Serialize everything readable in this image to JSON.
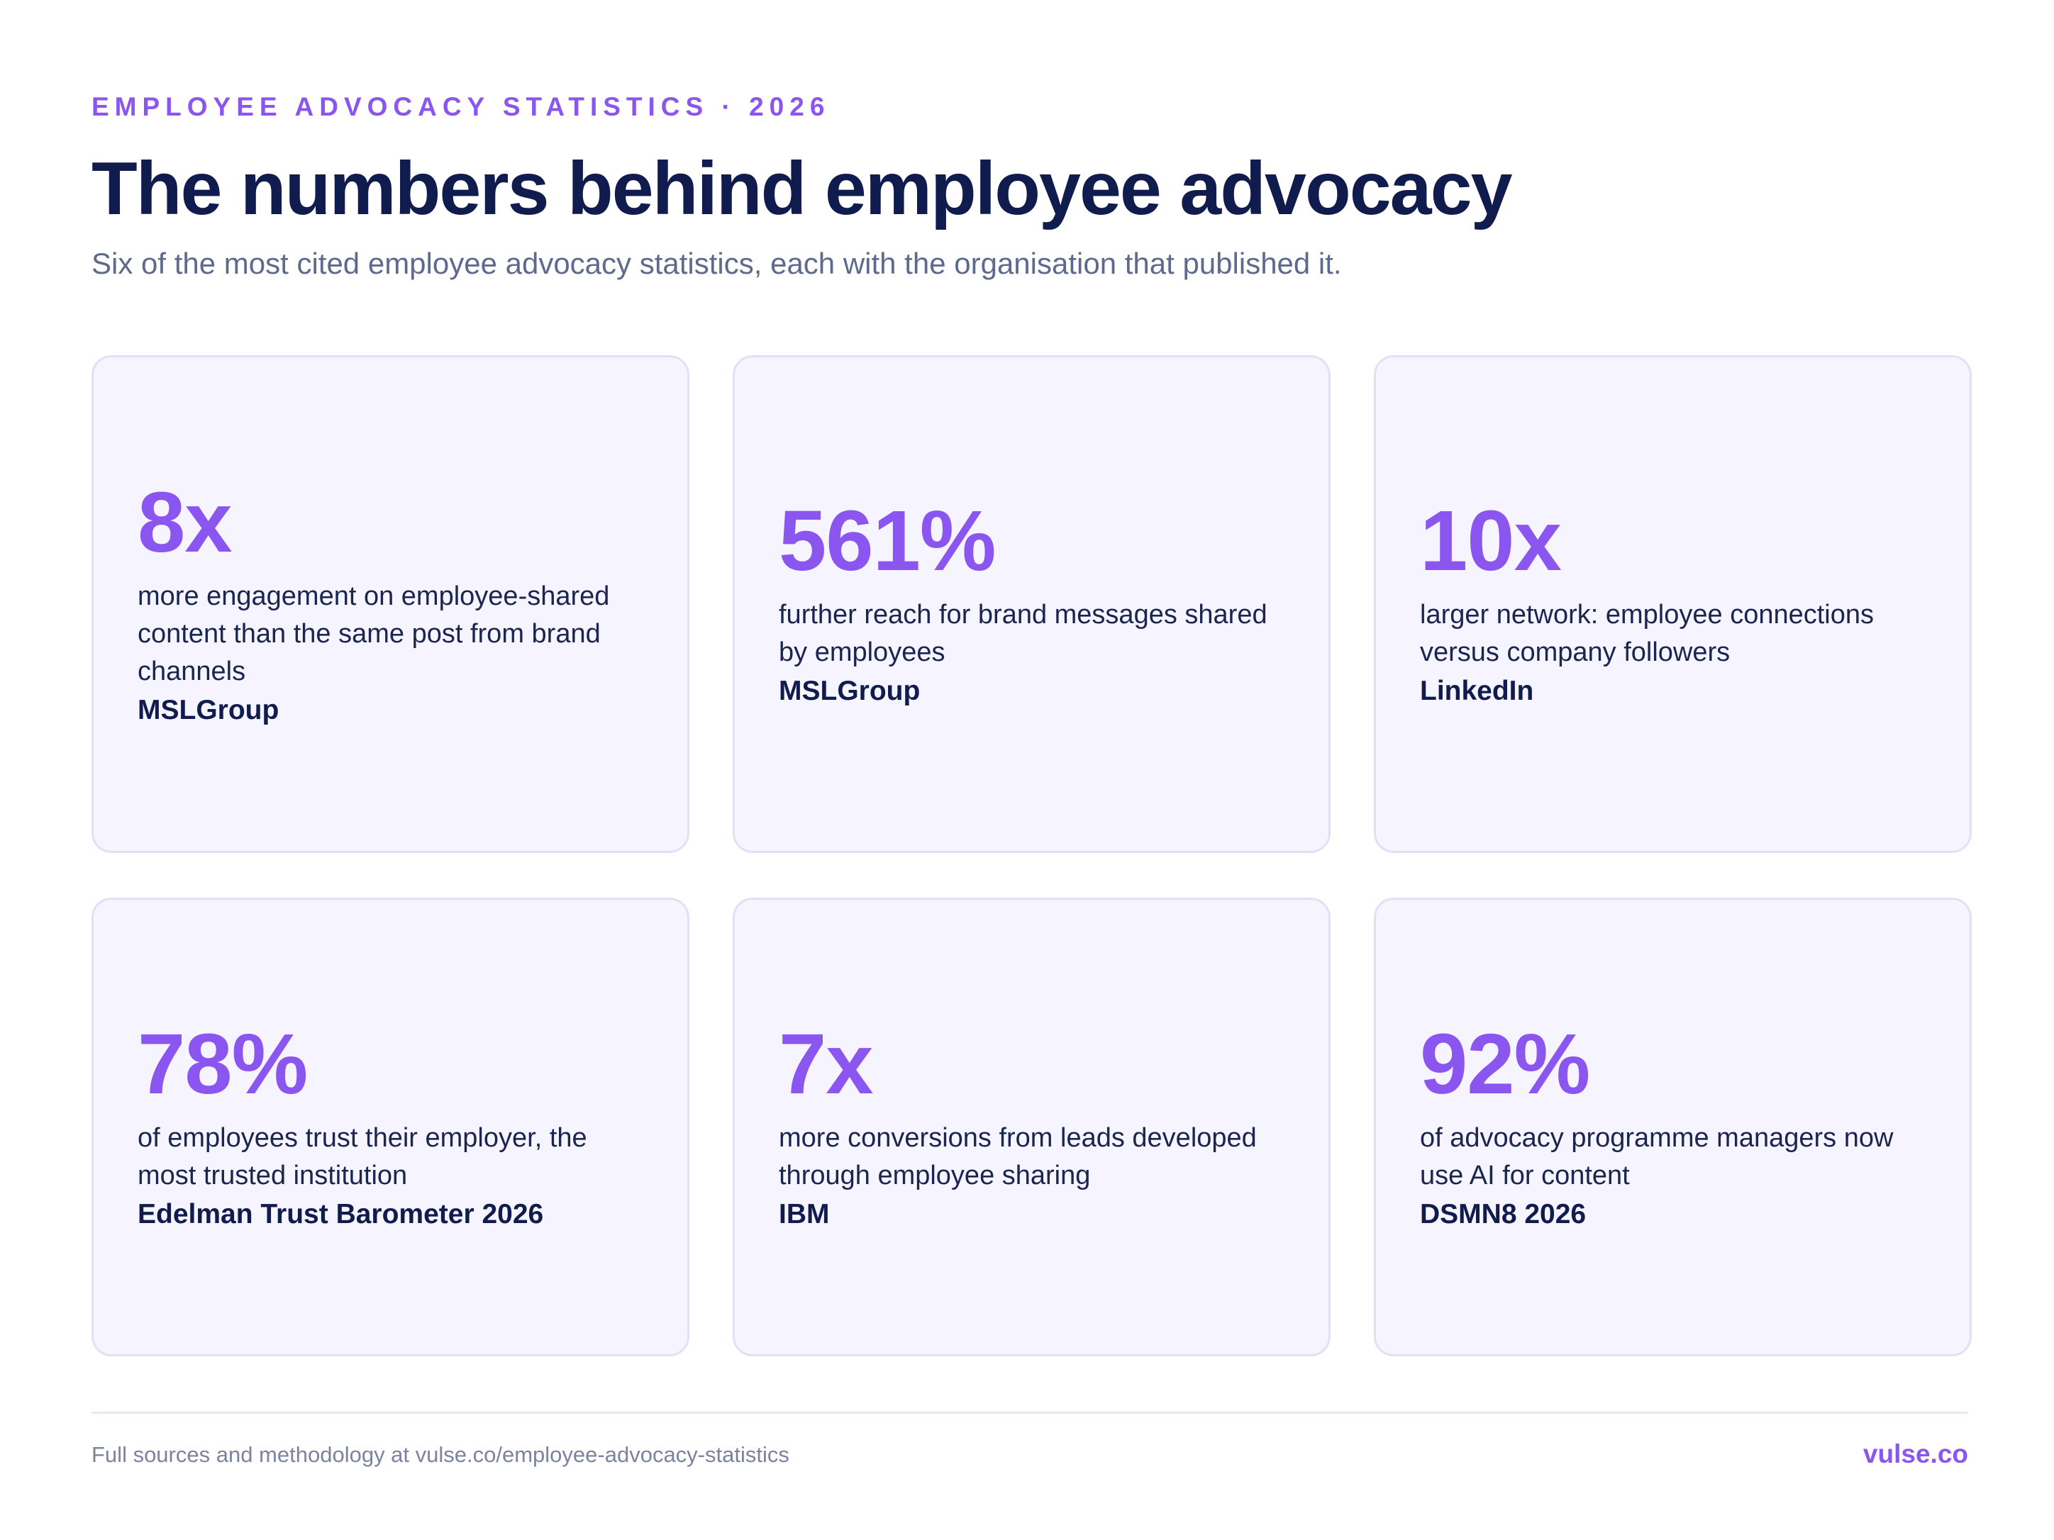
{
  "header": {
    "eyebrow": "EMPLOYEE ADVOCACY STATISTICS · 2026",
    "title": "The numbers behind employee advocacy",
    "subtitle": "Six of the most cited employee advocacy statistics, each with the organisation that published it."
  },
  "stats": [
    {
      "value": "8x",
      "description": "more engagement on employee-shared content than the same post from brand channels",
      "source": "MSLGroup"
    },
    {
      "value": "561%",
      "description": "further reach for brand messages shared by employees",
      "source": "MSLGroup"
    },
    {
      "value": "10x",
      "description": "larger network: employee connections versus company followers",
      "source": "LinkedIn"
    },
    {
      "value": "78%",
      "description": "of employees trust their employer, the most trusted institution",
      "source": "Edelman Trust Barometer 2026"
    },
    {
      "value": "7x",
      "description": "more conversions from leads developed through employee sharing",
      "source": "IBM"
    },
    {
      "value": "92%",
      "description": "of advocacy programme managers now use AI for content",
      "source": "DSMN8 2026"
    }
  ],
  "footer": {
    "sources_note": "Full sources and methodology at vulse.co/employee-advocacy-statistics",
    "brand": "vulse.co"
  },
  "colors": {
    "accent": "#8b55f0",
    "heading": "#0f1c4d",
    "card_background": "#f6f4fe",
    "card_border": "#e4def8"
  }
}
